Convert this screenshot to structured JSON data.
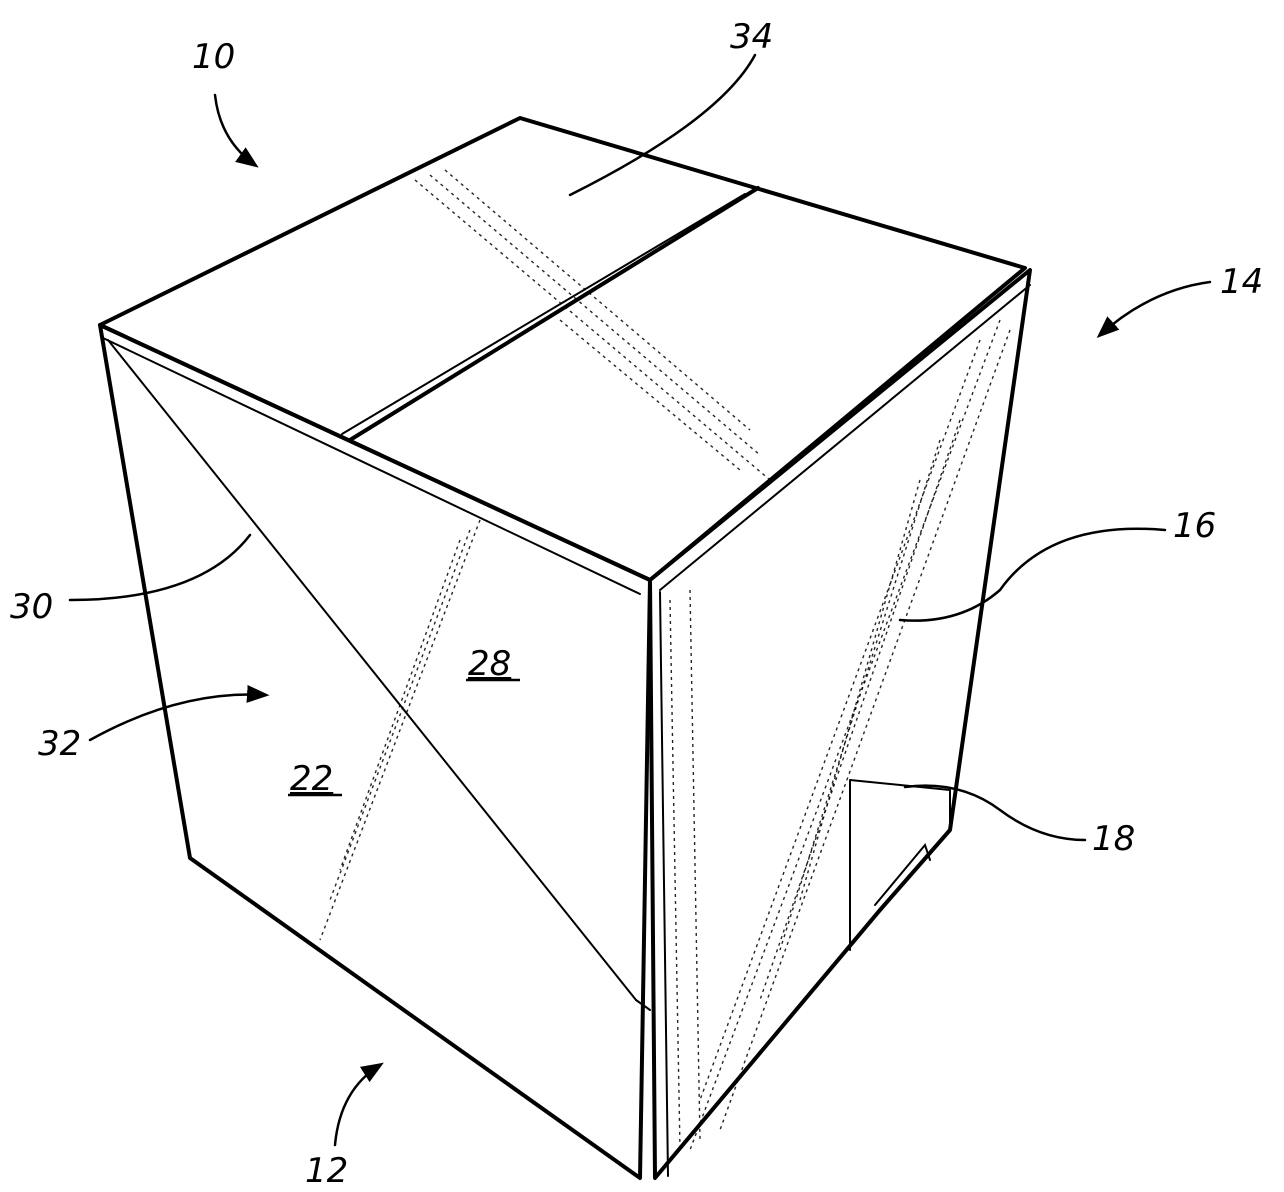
{
  "figure": {
    "references": {
      "ref_10": "10",
      "ref_12": "12",
      "ref_14": "14",
      "ref_16": "16",
      "ref_18": "18",
      "ref_22": "22",
      "ref_28": "28",
      "ref_30": "30",
      "ref_32": "32",
      "ref_34": "34"
    }
  }
}
